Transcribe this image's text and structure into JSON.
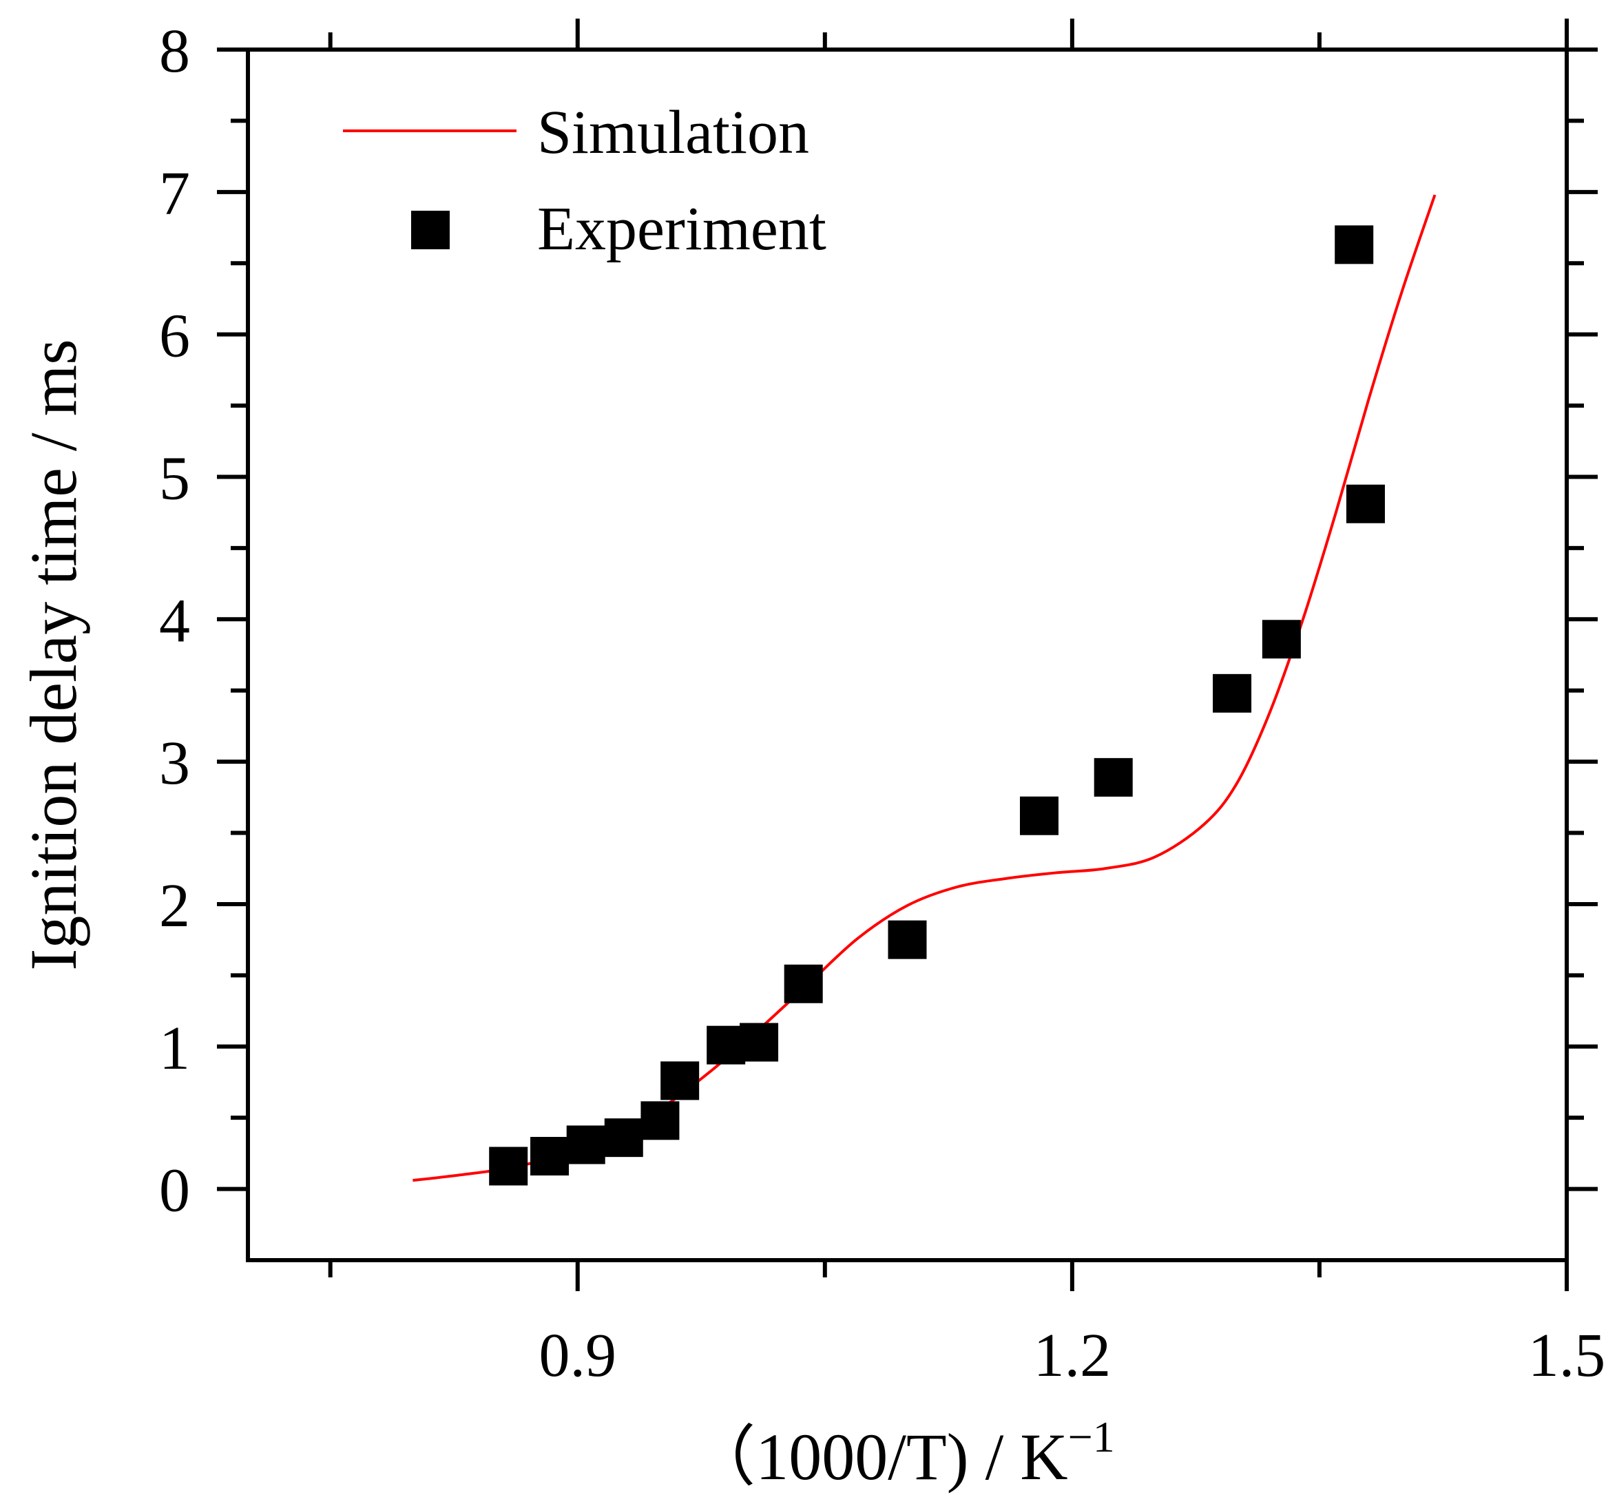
{
  "chart_data": {
    "type": "scatter",
    "title": "",
    "xlabel": "（1000/T) / K",
    "xlabel_superscript": "−1",
    "ylabel": "Ignition delay time / ms",
    "xlim": [
      0.7,
      1.5
    ],
    "ylim": [
      -0.5,
      8
    ],
    "xticks": [
      0.9,
      1.2,
      1.5
    ],
    "xtick_labels": [
      "0.9",
      "1.2",
      "1.5"
    ],
    "yticks": [
      0,
      1,
      2,
      3,
      4,
      5,
      6,
      7,
      8
    ],
    "ytick_labels": [
      "0",
      "1",
      "2",
      "3",
      "4",
      "5",
      "6",
      "7",
      "8"
    ],
    "grid": false,
    "legend_position": "top-left",
    "series": [
      {
        "name": "Simulation",
        "kind": "line",
        "color": "#ff0000",
        "x": [
          0.8,
          0.83,
          0.86,
          0.89,
          0.92,
          0.95,
          0.98,
          1.01,
          1.04,
          1.07,
          1.1,
          1.13,
          1.16,
          1.19,
          1.22,
          1.25,
          1.28,
          1.3,
          1.32,
          1.34,
          1.36,
          1.38,
          1.4,
          1.42
        ],
        "y": [
          0.06,
          0.1,
          0.15,
          0.24,
          0.37,
          0.56,
          0.82,
          1.12,
          1.44,
          1.76,
          1.99,
          2.12,
          2.18,
          2.22,
          2.25,
          2.33,
          2.56,
          2.85,
          3.35,
          4.0,
          4.75,
          5.55,
          6.3,
          6.98
        ]
      },
      {
        "name": "Experiment",
        "kind": "scatter",
        "color": "#000000",
        "x": [
          0.858,
          0.883,
          0.905,
          0.928,
          0.95,
          0.962,
          0.99,
          1.01,
          1.037,
          1.1,
          1.18,
          1.225,
          1.297,
          1.327,
          1.371,
          1.378
        ],
        "y": [
          0.16,
          0.23,
          0.31,
          0.36,
          0.48,
          0.76,
          1.01,
          1.03,
          1.44,
          1.75,
          2.62,
          2.89,
          3.48,
          3.86,
          6.63,
          4.81
        ]
      }
    ]
  }
}
